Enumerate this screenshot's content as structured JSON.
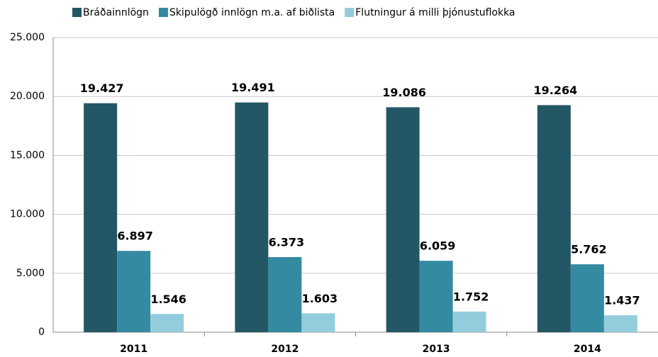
{
  "chart_data": {
    "type": "bar",
    "categories": [
      "2011",
      "2012",
      "2013",
      "2014"
    ],
    "series": [
      {
        "name": "Bráðainnlögn",
        "color": "#245766",
        "values": [
          19427,
          19491,
          19086,
          19264
        ],
        "value_labels": [
          "19.427",
          "19.491",
          "19.086",
          "19.264"
        ]
      },
      {
        "name": "Skipulögð innlögn m.a. af biðlista",
        "color": "#348aa0",
        "values": [
          6897,
          6373,
          6059,
          5762
        ],
        "value_labels": [
          "6.897",
          "6.373",
          "6.059",
          "5.762"
        ]
      },
      {
        "name": "Flutningur á milli þjónustuflokka",
        "color": "#93cddd",
        "values": [
          1546,
          1603,
          1752,
          1437
        ],
        "value_labels": [
          "1.546",
          "1.603",
          "1.752",
          "1.437"
        ]
      }
    ],
    "ylim": [
      0,
      25000
    ],
    "yticks": [
      0,
      {
        "value": 5000,
        "label": "5.000"
      },
      {
        "value": 10000,
        "label": "10.000"
      },
      {
        "value": 15000,
        "label": "15.000"
      },
      {
        "value": 20000,
        "label": "20.000"
      },
      {
        "value": 25000,
        "label": "25.000"
      }
    ],
    "grid": true,
    "legend": "top"
  }
}
